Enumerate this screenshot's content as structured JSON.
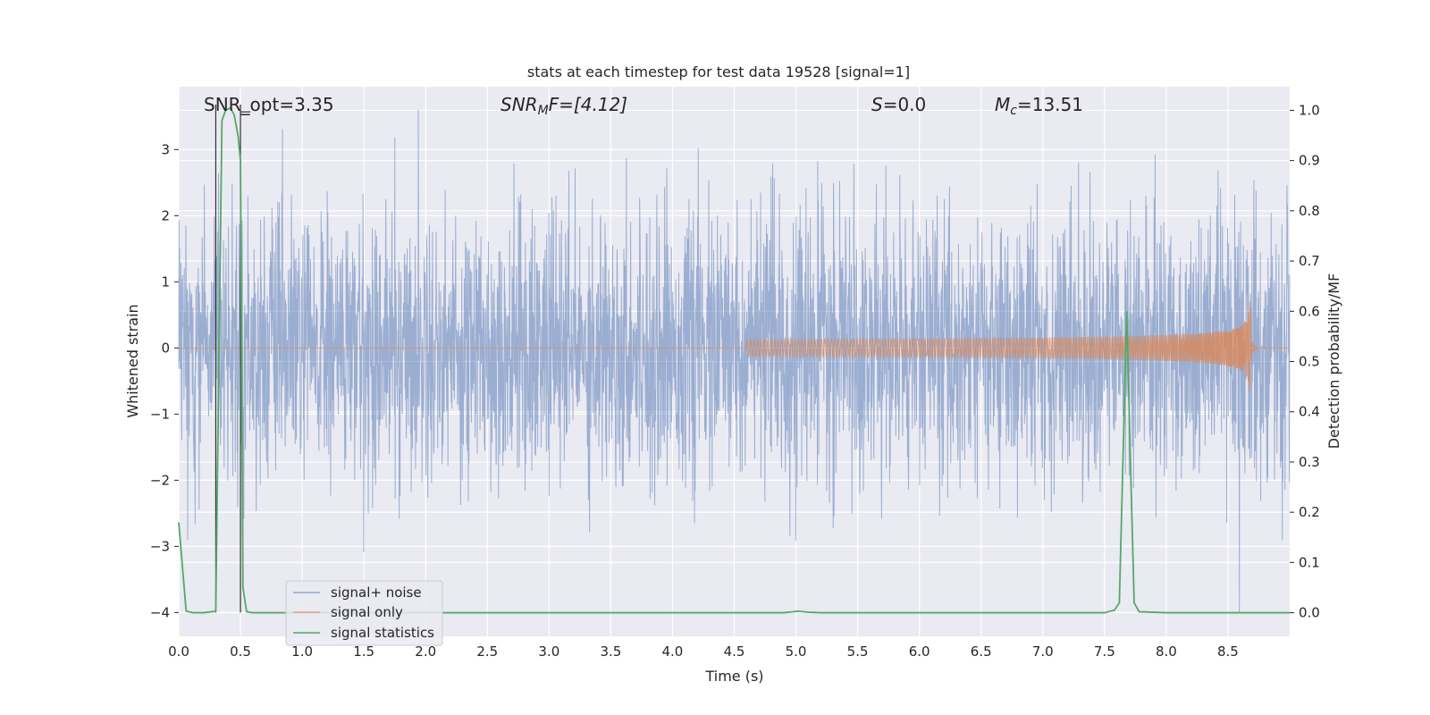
{
  "chart_data": {
    "type": "line",
    "title": "stats at each timestep for test data 19528 [signal=1]",
    "xlabel": "Time (s)",
    "ylabel": "Whitened strain",
    "y2label": "Detection probability/MF",
    "xlim": [
      0.0,
      9.0
    ],
    "ylim": [
      -4.36,
      3.95
    ],
    "y2lim": [
      -0.047,
      1.047
    ],
    "xticks": [
      "0.0",
      "0.5",
      "1.0",
      "1.5",
      "2.0",
      "2.5",
      "3.0",
      "3.5",
      "4.0",
      "4.5",
      "5.0",
      "5.5",
      "6.0",
      "6.5",
      "7.0",
      "7.5",
      "8.0",
      "8.5"
    ],
    "yticks": [
      "-4",
      "-3",
      "-2",
      "-1",
      "0",
      "1",
      "2",
      "3"
    ],
    "y2ticks": [
      "0.0",
      "0.1",
      "0.2",
      "0.3",
      "0.4",
      "0.5",
      "0.6",
      "0.7",
      "0.8",
      "0.9",
      "1.0"
    ],
    "grid": true,
    "legend_position": "lower-left",
    "annotations": {
      "snr_opt": "SNR_opt=3.35",
      "snr_mf_var": "SNR",
      "snr_mf_sub": "M",
      "snr_mf_rest": "F=[4.12]",
      "s_var": "S",
      "s_rest": "=0.0",
      "mc_var": "M",
      "mc_sub": "c",
      "mc_rest": "=13.51"
    },
    "series": [
      {
        "name": "signal+ noise",
        "color": "#4c72b0",
        "noise_std": 1.0,
        "x_range": [
          0.0,
          9.0
        ]
      },
      {
        "name": "signal only",
        "color": "#dd8452",
        "chirp": {
          "t_start": 4.6,
          "t_merge": 8.68,
          "peak_amplitude": 0.72,
          "t_end": 9.0
        }
      },
      {
        "name": "signal statistics",
        "color": "#55a868",
        "axis": "right",
        "x": [
          0.0,
          0.06,
          0.12,
          0.2,
          0.3,
          0.31,
          0.33,
          0.35,
          0.38,
          0.42,
          0.45,
          0.48,
          0.5,
          0.51,
          0.52,
          0.55,
          0.6,
          1.0,
          2.0,
          3.0,
          4.0,
          4.9,
          5.02,
          5.1,
          5.2,
          6.0,
          7.0,
          7.5,
          7.58,
          7.62,
          7.68,
          7.71,
          7.74,
          7.78,
          8.0,
          9.0
        ],
        "y": [
          0.18,
          0.003,
          0.0,
          0.0,
          0.003,
          0.2,
          0.6,
          0.98,
          1.0,
          1.005,
          0.99,
          0.95,
          0.9,
          0.5,
          0.05,
          0.002,
          0.0,
          0.0,
          0.0,
          0.0,
          0.0,
          0.0,
          0.003,
          0.001,
          0.0,
          0.0,
          0.0,
          0.0,
          0.005,
          0.02,
          0.6,
          0.3,
          0.02,
          0.002,
          0.0,
          0.0
        ]
      }
    ],
    "markers": [
      0.3,
      0.5
    ]
  }
}
